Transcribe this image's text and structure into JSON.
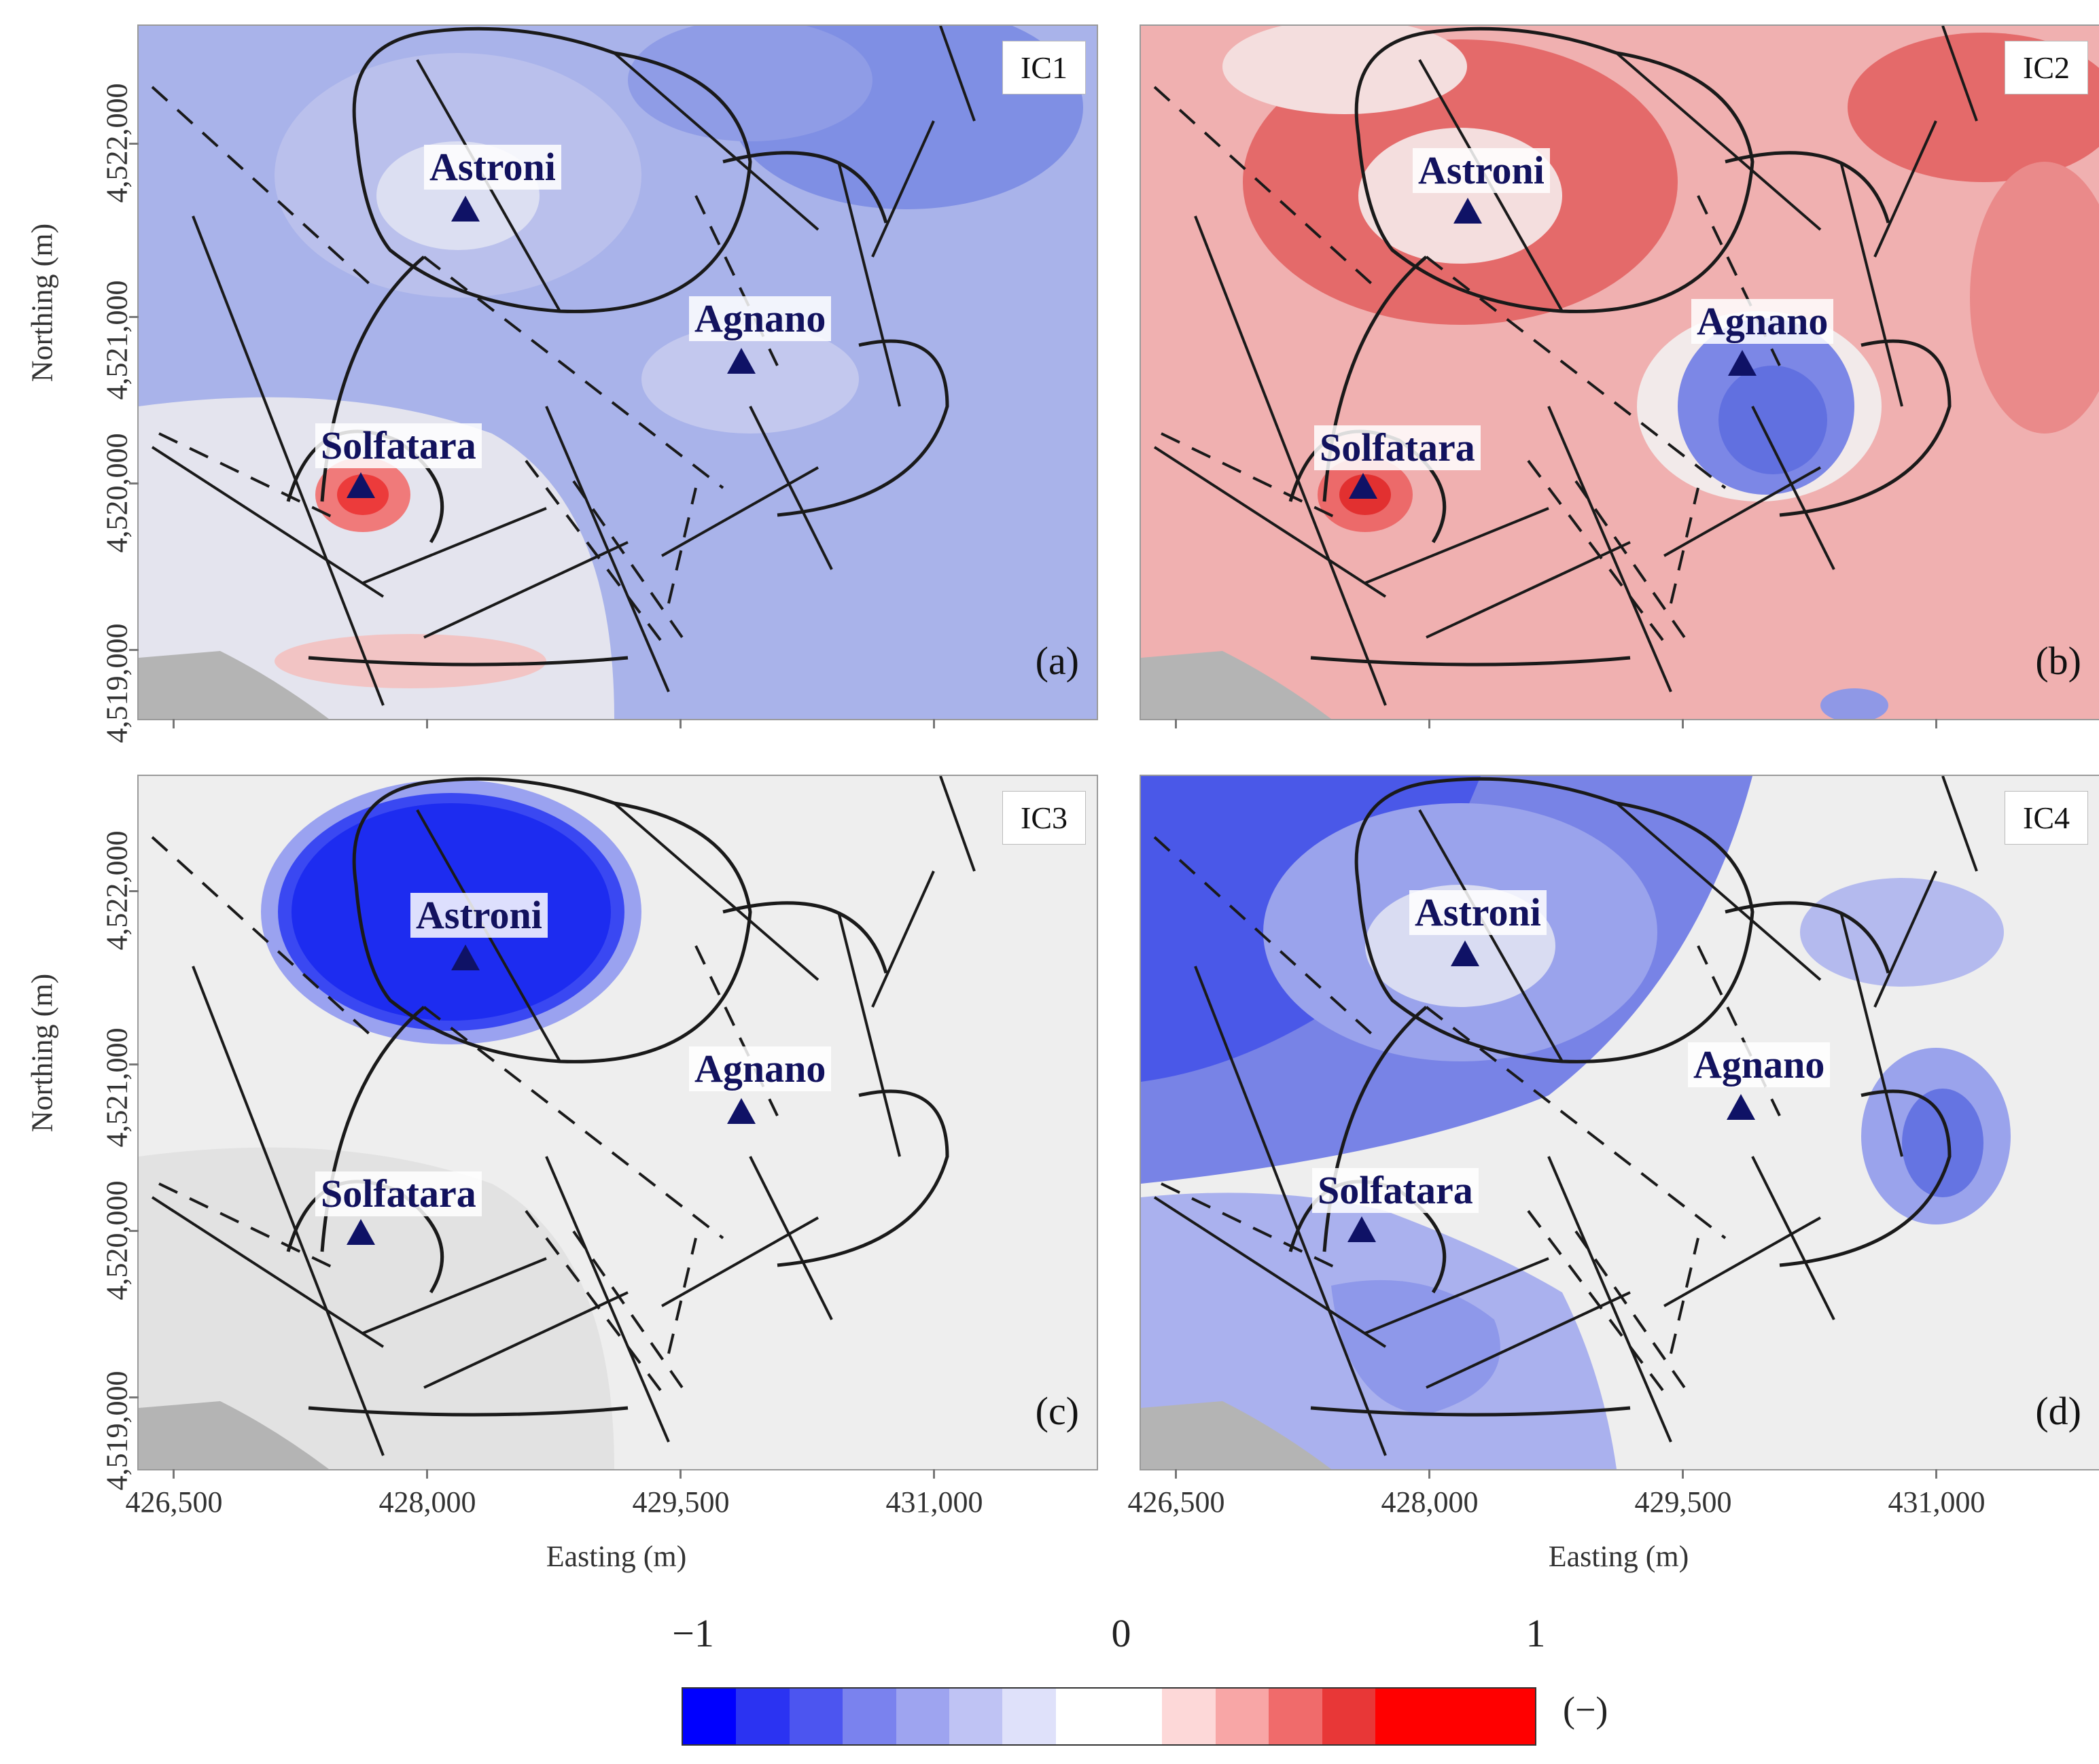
{
  "panels": [
    {
      "id": "IC1",
      "letter": "(a)",
      "base": "#a9b3ea",
      "blob": "#7f8fe4",
      "solf": "#ec3b3b",
      "astroni": "#d3d6ee"
    },
    {
      "id": "IC2",
      "letter": "(b)",
      "base": "#f0b0b0",
      "blob": "#e46a6a",
      "solf": "#e23030",
      "astroni": "#f4dede"
    },
    {
      "id": "IC3",
      "letter": "(c)",
      "base": "#eeeeee",
      "blob": "#e6e6e6",
      "solf": "#eeeeee",
      "astroni": "#1d2cf0"
    },
    {
      "id": "IC4",
      "letter": "(d)",
      "base": "#c4c9ef",
      "blob": "#6574e2",
      "solf": "#c4c9ef",
      "astroni": "#d9dcf2"
    }
  ],
  "sites": {
    "astroni": "Astroni",
    "agnano": "Agnano",
    "solfatara": "Solfatara"
  },
  "axes": {
    "y_label": "Northing (m)",
    "x_label": "Easting (m)",
    "y_ticks": [
      "4,522,000",
      "4,521,000",
      "4,520,000",
      "4,519,000"
    ],
    "x_ticks": [
      "426,500",
      "428,000",
      "429,500",
      "431,000"
    ]
  },
  "colorbar": {
    "tick_min": "−1",
    "tick_mid": "0",
    "tick_max": "1",
    "unit": "(−)",
    "colors": [
      "#0000ff",
      "#2b33f2",
      "#4c55f0",
      "#7a82ee",
      "#9ea4f0",
      "#bfc3f4",
      "#dfe1fa",
      "#ffffff",
      "#ffffff",
      "#fdd8d8",
      "#f8a6a6",
      "#f06b6b",
      "#e83737",
      "#ff0000",
      "#ff0000",
      "#ff0000"
    ]
  }
}
